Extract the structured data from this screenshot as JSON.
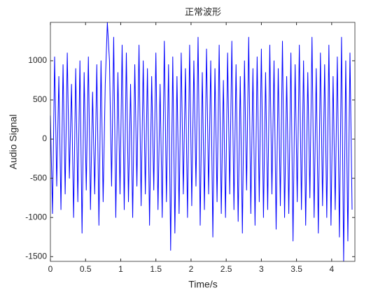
{
  "chart_data": {
    "type": "line",
    "title": "正常波形",
    "x_label": "Time/s",
    "y_label": "Audio Signal",
    "x": [
      0,
      0.03,
      0.06,
      0.09,
      0.12,
      0.15,
      0.18,
      0.21,
      0.24,
      0.27,
      0.3,
      0.33,
      0.36,
      0.39,
      0.42,
      0.45,
      0.48,
      0.51,
      0.54,
      0.57,
      0.6,
      0.63,
      0.66,
      0.69,
      0.72,
      0.75,
      0.78,
      0.81,
      0.84,
      0.87,
      0.9,
      0.93,
      0.96,
      0.99,
      1.02,
      1.05,
      1.08,
      1.11,
      1.14,
      1.17,
      1.2,
      1.23,
      1.26,
      1.29,
      1.32,
      1.35,
      1.38,
      1.41,
      1.44,
      1.47,
      1.5,
      1.53,
      1.56,
      1.59,
      1.62,
      1.65,
      1.68,
      1.71,
      1.74,
      1.77,
      1.8,
      1.83,
      1.86,
      1.89,
      1.92,
      1.95,
      1.98,
      2.01,
      2.04,
      2.07,
      2.1,
      2.13,
      2.16,
      2.19,
      2.22,
      2.25,
      2.28,
      2.31,
      2.34,
      2.37,
      2.4,
      2.43,
      2.46,
      2.49,
      2.52,
      2.55,
      2.58,
      2.61,
      2.64,
      2.67,
      2.7,
      2.73,
      2.76,
      2.79,
      2.82,
      2.85,
      2.88,
      2.91,
      2.94,
      2.97,
      3,
      3.03,
      3.06,
      3.09,
      3.12,
      3.15,
      3.18,
      3.21,
      3.24,
      3.27,
      3.3,
      3.33,
      3.36,
      3.39,
      3.42,
      3.45,
      3.48,
      3.51,
      3.54,
      3.57,
      3.6,
      3.63,
      3.66,
      3.69,
      3.72,
      3.75,
      3.78,
      3.81,
      3.84,
      3.87,
      3.9,
      3.93,
      3.96,
      3.99,
      4.02,
      4.05,
      4.08,
      4.11,
      4.14,
      4.17,
      4.2,
      4.23,
      4.26,
      4.29
    ],
    "series": [
      {
        "color": "#0000ff",
        "values": [
          300,
          -950,
          1050,
          -600,
          800,
          -900,
          950,
          -700,
          1100,
          -500,
          700,
          -1000,
          900,
          -800,
          1000,
          -1200,
          850,
          -650,
          1050,
          -900,
          600,
          -700,
          950,
          -1100,
          1000,
          -800,
          700,
          1490,
          1000,
          -600,
          1300,
          -1000,
          850,
          -700,
          1200,
          -900,
          1100,
          -800,
          700,
          -1000,
          950,
          -600,
          1200,
          -850,
          1000,
          -700,
          900,
          -1100,
          800,
          -650,
          1100,
          -900,
          700,
          -1000,
          1250,
          -800,
          950,
          -1420,
          1050,
          -1200,
          800,
          -950,
          1100,
          -700,
          900,
          -1000,
          1200,
          -850,
          1000,
          -600,
          1300,
          -1100,
          850,
          -900,
          1150,
          -700,
          1000,
          -1250,
          900,
          -800,
          1200,
          -950,
          750,
          -1000,
          1100,
          -700,
          1250,
          -900,
          950,
          -1050,
          800,
          -1200,
          1000,
          -650,
          1300,
          -950,
          900,
          -1100,
          1050,
          -800,
          1150,
          -1000,
          850,
          -900,
          1200,
          -700,
          1000,
          -1150,
          900,
          -850,
          1250,
          -1000,
          800,
          -950,
          1100,
          -1300,
          950,
          -800,
          1200,
          -900,
          1000,
          -1100,
          850,
          -750,
          1300,
          -1000,
          900,
          -1200,
          1100,
          -850,
          950,
          -1000,
          1200,
          -1100,
          800,
          -900,
          1050,
          -1250,
          1300,
          -1560,
          1000,
          -1300,
          1100,
          -900
        ]
      }
    ],
    "xlim": [
      0,
      4.33
    ],
    "ylim": [
      -1560,
      1490
    ],
    "xticks": [
      0,
      0.5,
      1,
      1.5,
      2,
      2.5,
      3,
      3.5,
      4
    ],
    "yticks": [
      -1500,
      -1000,
      -500,
      0,
      500,
      1000
    ]
  }
}
